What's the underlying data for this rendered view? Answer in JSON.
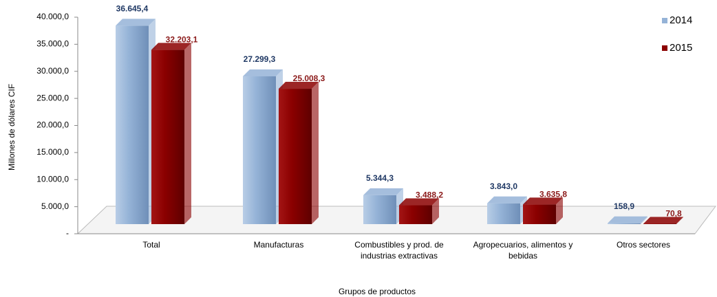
{
  "chart_data": {
    "type": "bar",
    "y_label": "Millones de dólares CIF",
    "x_label": "Grupos de productos",
    "categories": [
      "Total",
      "Manufacturas",
      "Combustibles y prod. de industrias extractivas",
      "Agropecuarios, alimentos y bebidas",
      "Otros sectores"
    ],
    "series": [
      {
        "name": "2014",
        "color": "#95b3d7",
        "label_color": "#1f3864",
        "values": [
          36645.4,
          27299.3,
          5344.3,
          3843.0,
          158.9
        ],
        "value_labels": [
          "36.645,4",
          "27.299,3",
          "5.344,3",
          "3.843,0",
          "158,9"
        ]
      },
      {
        "name": "2015",
        "color": "#8b0000",
        "label_color": "#8b1a1a",
        "values": [
          32203.1,
          25008.3,
          3488.2,
          3635.8,
          70.8
        ],
        "value_labels": [
          "32.203,1",
          "25.008,3",
          "3.488,2",
          "3.635,8",
          "70,8"
        ]
      }
    ],
    "ylim": [
      0,
      40000
    ],
    "yticks": [
      {
        "value": 0,
        "label": "-"
      },
      {
        "value": 5000,
        "label": "5.000,0"
      },
      {
        "value": 10000,
        "label": "10.000,0"
      },
      {
        "value": 15000,
        "label": "15.000,0"
      },
      {
        "value": 20000,
        "label": "20.000,0"
      },
      {
        "value": 25000,
        "label": "25.000,0"
      },
      {
        "value": 30000,
        "label": "30.000,0"
      },
      {
        "value": 35000,
        "label": "35.000,0"
      },
      {
        "value": 40000,
        "label": "40.000,0"
      }
    ],
    "legend": "top-right"
  }
}
